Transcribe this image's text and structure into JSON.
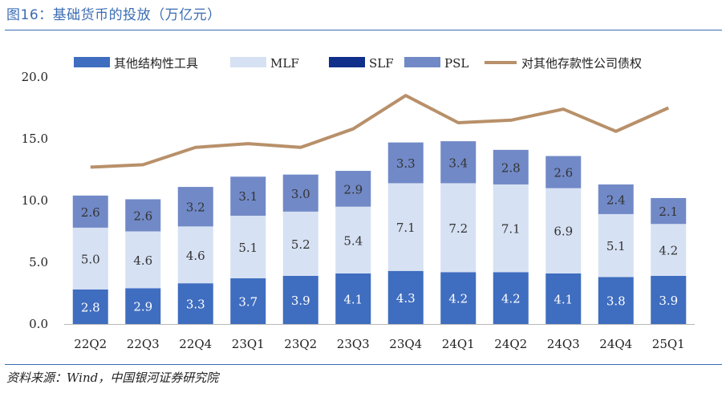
{
  "figure_title": "图16：基础货币的投放（万亿元）",
  "source": "资料来源：Wind，中国银河证券研究院",
  "colors": {
    "other_tools": "#3f6dbf",
    "mlf": "#d6e1f3",
    "slf": "#102f8a",
    "psl": "#7189c7",
    "claims": "#b8906a"
  },
  "chart_data": {
    "type": "bar",
    "stacked": true,
    "categories": [
      "22Q2",
      "22Q3",
      "22Q4",
      "23Q1",
      "23Q2",
      "23Q3",
      "23Q4",
      "24Q1",
      "24Q2",
      "24Q3",
      "24Q4",
      "25Q1"
    ],
    "ylim": [
      0,
      20
    ],
    "yticks": [
      "0.0",
      "5.0",
      "10.0",
      "15.0",
      "20.0"
    ],
    "legend_position": "top",
    "series": [
      {
        "name": "其他结构性工具",
        "kind": "bar",
        "color_key": "other_tools",
        "values": [
          2.8,
          2.9,
          3.3,
          3.7,
          3.9,
          4.1,
          4.3,
          4.2,
          4.2,
          4.1,
          3.8,
          3.9
        ],
        "labels": [
          "2.8",
          "2.9",
          "3.3",
          "3.7",
          "3.9",
          "4.1",
          "4.3",
          "4.2",
          "4.2",
          "4.1",
          "3.8",
          "3.9"
        ]
      },
      {
        "name": "MLF",
        "kind": "bar",
        "color_key": "mlf",
        "values": [
          5.0,
          4.6,
          4.6,
          5.1,
          5.2,
          5.4,
          7.1,
          7.2,
          7.1,
          6.9,
          5.1,
          4.2
        ],
        "labels": [
          "5.0",
          "4.6",
          "4.6",
          "5.1",
          "5.2",
          "5.4",
          "7.1",
          "7.2",
          "7.1",
          "6.9",
          "5.1",
          "4.2"
        ]
      },
      {
        "name": "SLF",
        "kind": "bar",
        "color_key": "slf",
        "values": [
          0,
          0,
          0,
          0.03,
          0,
          0,
          0,
          0,
          0,
          0,
          0,
          0
        ]
      },
      {
        "name": "PSL",
        "kind": "bar",
        "color_key": "psl",
        "values": [
          2.6,
          2.6,
          3.2,
          3.1,
          3.0,
          2.9,
          3.3,
          3.4,
          2.8,
          2.6,
          2.4,
          2.1
        ],
        "labels": [
          "2.6",
          "2.6",
          "3.2",
          "3.1",
          "3.0",
          "2.9",
          "3.3",
          "3.4",
          "2.8",
          "2.6",
          "2.4",
          "2.1"
        ]
      },
      {
        "name": "对其他存款性公司债权",
        "kind": "line",
        "color_key": "claims",
        "values": [
          12.7,
          12.9,
          14.3,
          14.6,
          14.3,
          15.8,
          18.5,
          16.3,
          16.5,
          17.4,
          15.6,
          17.5
        ]
      }
    ]
  }
}
